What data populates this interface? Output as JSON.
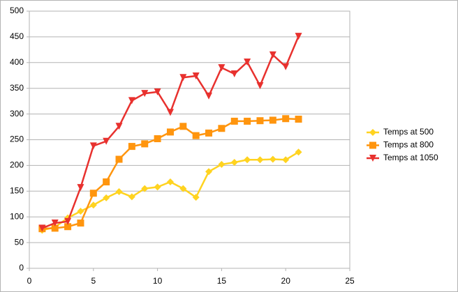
{
  "chart_data": {
    "type": "line",
    "x": [
      1,
      2,
      3,
      4,
      5,
      6,
      7,
      8,
      9,
      10,
      11,
      12,
      13,
      14,
      15,
      16,
      17,
      18,
      19,
      20,
      21
    ],
    "series": [
      {
        "name": "Temps at 500",
        "color": "#ffd320",
        "marker": "diamond",
        "values": [
          74,
          80,
          98,
          111,
          123,
          137,
          149,
          139,
          155,
          158,
          168,
          155,
          138,
          188,
          202,
          206,
          211,
          211,
          212,
          211,
          226
        ]
      },
      {
        "name": "Temps at 800",
        "color": "#ff950e",
        "marker": "square",
        "values": [
          77,
          78,
          81,
          88,
          146,
          168,
          212,
          237,
          242,
          252,
          265,
          276,
          258,
          263,
          272,
          286,
          286,
          287,
          288,
          291,
          290
        ]
      },
      {
        "name": "Temps at 1050",
        "color": "#e8312e",
        "marker": "triangle-down",
        "values": [
          78,
          88,
          91,
          157,
          238,
          247,
          276,
          326,
          340,
          343,
          303,
          371,
          374,
          335,
          390,
          378,
          401,
          355,
          415,
          392,
          451
        ]
      }
    ],
    "xlim": [
      0,
      25
    ],
    "xticks": [
      0,
      5,
      10,
      15,
      20,
      25
    ],
    "ylim": [
      0,
      500
    ],
    "yticks": [
      0,
      50,
      100,
      150,
      200,
      250,
      300,
      350,
      400,
      450,
      500
    ],
    "grid": true,
    "legend": "right"
  }
}
